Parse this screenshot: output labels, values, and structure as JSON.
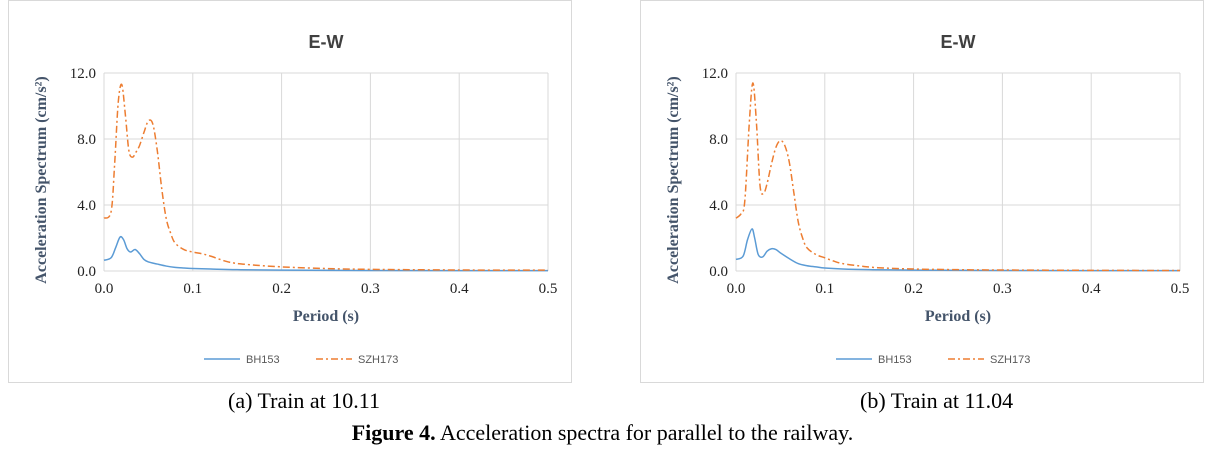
{
  "chart_data": [
    {
      "type": "line",
      "title": "E-W",
      "xlabel": "Period (s)",
      "ylabel": "Acceleration Spectrum (cm/s²)",
      "xlim": [
        0,
        0.5
      ],
      "ylim": [
        0,
        12
      ],
      "xticks": [
        "0.0",
        "0.1",
        "0.2",
        "0.3",
        "0.4",
        "0.5"
      ],
      "yticks": [
        "0.0",
        "4.0",
        "8.0",
        "12.0"
      ],
      "grid": true,
      "legend_position": "bottom",
      "series": [
        {
          "name": "BH153",
          "color": "#5b9bd5",
          "dash": "solid",
          "x": [
            0,
            0.008,
            0.013,
            0.018,
            0.022,
            0.026,
            0.03,
            0.035,
            0.04,
            0.045,
            0.05,
            0.06,
            0.07,
            0.08,
            0.09,
            0.1,
            0.12,
            0.15,
            0.2,
            0.3,
            0.4,
            0.5
          ],
          "y": [
            0.65,
            0.8,
            1.4,
            2.05,
            1.9,
            1.35,
            1.15,
            1.3,
            1.05,
            0.7,
            0.55,
            0.42,
            0.3,
            0.22,
            0.18,
            0.15,
            0.12,
            0.08,
            0.05,
            0.03,
            0.02,
            0.02
          ]
        },
        {
          "name": "SZH173",
          "color": "#ed7d31",
          "dash": "dashdot",
          "x": [
            0,
            0.008,
            0.012,
            0.016,
            0.02,
            0.024,
            0.028,
            0.032,
            0.036,
            0.04,
            0.045,
            0.05,
            0.055,
            0.06,
            0.065,
            0.07,
            0.075,
            0.08,
            0.09,
            0.1,
            0.11,
            0.12,
            0.14,
            0.16,
            0.2,
            0.25,
            0.3,
            0.4,
            0.5
          ],
          "y": [
            3.2,
            3.6,
            6.5,
            10.2,
            11.3,
            9.5,
            7.3,
            6.9,
            7.2,
            7.6,
            8.4,
            9.1,
            8.9,
            7.3,
            5.0,
            3.2,
            2.3,
            1.7,
            1.3,
            1.15,
            1.05,
            0.9,
            0.55,
            0.4,
            0.25,
            0.15,
            0.1,
            0.06,
            0.05
          ]
        }
      ]
    },
    {
      "type": "line",
      "title": "E-W",
      "xlabel": "Period (s)",
      "ylabel": "Acceleration Spectrum (cm/s²)",
      "xlim": [
        0,
        0.5
      ],
      "ylim": [
        0,
        12
      ],
      "xticks": [
        "0.0",
        "0.1",
        "0.2",
        "0.3",
        "0.4",
        "0.5"
      ],
      "yticks": [
        "0.0",
        "4.0",
        "8.0",
        "12.0"
      ],
      "grid": true,
      "legend_position": "bottom",
      "series": [
        {
          "name": "BH153",
          "color": "#5b9bd5",
          "dash": "solid",
          "x": [
            0,
            0.008,
            0.013,
            0.018,
            0.021,
            0.025,
            0.03,
            0.035,
            0.04,
            0.045,
            0.05,
            0.06,
            0.07,
            0.08,
            0.09,
            0.1,
            0.12,
            0.15,
            0.2,
            0.3,
            0.4,
            0.5
          ],
          "y": [
            0.7,
            0.9,
            1.9,
            2.55,
            2.0,
            1.0,
            0.85,
            1.2,
            1.35,
            1.3,
            1.1,
            0.75,
            0.45,
            0.32,
            0.25,
            0.18,
            0.12,
            0.08,
            0.05,
            0.03,
            0.02,
            0.02
          ]
        },
        {
          "name": "SZH173",
          "color": "#ed7d31",
          "dash": "dashdot",
          "x": [
            0,
            0.006,
            0.01,
            0.015,
            0.019,
            0.023,
            0.027,
            0.031,
            0.035,
            0.04,
            0.045,
            0.05,
            0.055,
            0.06,
            0.065,
            0.07,
            0.075,
            0.08,
            0.09,
            0.1,
            0.11,
            0.12,
            0.14,
            0.16,
            0.2,
            0.25,
            0.3,
            0.4,
            0.5
          ],
          "y": [
            3.2,
            3.5,
            4.3,
            9.0,
            11.4,
            9.0,
            5.2,
            4.7,
            5.3,
            6.5,
            7.5,
            7.9,
            7.6,
            6.6,
            4.8,
            3.0,
            2.0,
            1.4,
            1.0,
            0.8,
            0.6,
            0.45,
            0.3,
            0.2,
            0.12,
            0.08,
            0.06,
            0.04,
            0.03
          ]
        }
      ]
    }
  ],
  "captions": {
    "a": "(a)  Train at 10.11",
    "b": "(b)  Train at 11.04"
  },
  "figure_caption": {
    "label": "Figure 4.",
    "text": " Acceleration spectra for parallel to the railway."
  }
}
